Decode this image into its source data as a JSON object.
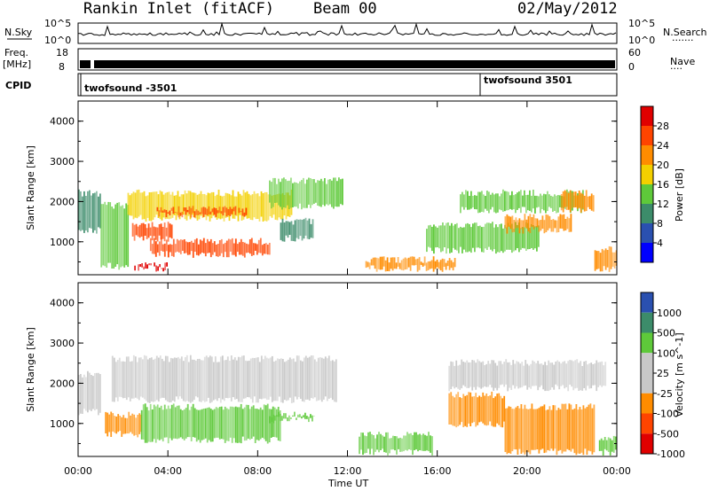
{
  "header": {
    "station": "Rankin Inlet (fitACF)",
    "beam": "Beam 00",
    "date": "02/May/2012"
  },
  "strips": {
    "nsky_label": "N.Sky",
    "nsky_ticks": [
      "10^5",
      "10^0"
    ],
    "nsky_right_ticks": [
      "10^5",
      "10^0"
    ],
    "nsearch_label": "N.Search",
    "freq_label": "Freq.",
    "freq_unit": "[MHz]",
    "freq_ticks": [
      "18",
      "8"
    ],
    "nave_ticks": [
      "60",
      "0"
    ],
    "nave_label": "Nave",
    "cpid_label": "CPID",
    "cpid_entries": [
      "twofsound -3501",
      "twofsound 3501"
    ]
  },
  "colors": {
    "power": [
      "#0000ff",
      "#2a50b0",
      "#3c8c6a",
      "#5ec93a",
      "#f3d000",
      "#ff8c00",
      "#ff4400",
      "#e00000"
    ],
    "velocity": [
      "#2a50b0",
      "#3c8c6a",
      "#5ec93a",
      "#c8c8c8",
      "#c8c8c8",
      "#ff8c00",
      "#ff4400",
      "#e00000"
    ]
  },
  "chart_data": [
    {
      "type": "heatmap",
      "name": "power",
      "ylabel": "Slant Range [km]",
      "xlabel": "",
      "x_ticks": [
        "00:00",
        "04:00",
        "08:00",
        "12:00",
        "16:00",
        "20:00",
        "00:00"
      ],
      "y_ticks": [
        "1000",
        "2000",
        "3000",
        "4000"
      ],
      "ylim": [
        180,
        4500
      ],
      "xlim_hours": [
        0,
        24
      ],
      "colorbar_label": "Power [dB]",
      "colorbar_ticks": [
        "28",
        "24",
        "20",
        "16",
        "12",
        "8",
        "4"
      ],
      "colorbar_range": [
        0,
        32
      ],
      "regions": [
        {
          "t0": 0.0,
          "t1": 1.0,
          "r0": 1200,
          "r1": 2300,
          "v": 10
        },
        {
          "t0": 1.0,
          "t1": 2.2,
          "r0": 300,
          "r1": 2000,
          "v": 14
        },
        {
          "t0": 2.2,
          "t1": 9.5,
          "r0": 1500,
          "r1": 2300,
          "v": 18
        },
        {
          "t0": 2.4,
          "t1": 4.2,
          "r0": 1000,
          "r1": 1500,
          "v": 24
        },
        {
          "t0": 3.2,
          "t1": 8.5,
          "r0": 600,
          "r1": 1100,
          "v": 27
        },
        {
          "t0": 3.5,
          "t1": 7.5,
          "r0": 1600,
          "r1": 1900,
          "v": 25
        },
        {
          "t0": 2.5,
          "t1": 4.0,
          "r0": 250,
          "r1": 500,
          "v": 28
        },
        {
          "t0": 8.5,
          "t1": 11.8,
          "r0": 1800,
          "r1": 2600,
          "v": 12
        },
        {
          "t0": 9.0,
          "t1": 10.5,
          "r0": 1000,
          "r1": 1600,
          "v": 8
        },
        {
          "t0": 12.8,
          "t1": 16.8,
          "r0": 250,
          "r1": 650,
          "v": 22
        },
        {
          "t0": 15.5,
          "t1": 20.5,
          "r0": 700,
          "r1": 1500,
          "v": 12
        },
        {
          "t0": 17.0,
          "t1": 22.5,
          "r0": 1700,
          "r1": 2300,
          "v": 14
        },
        {
          "t0": 19.0,
          "t1": 22.0,
          "r0": 1200,
          "r1": 1700,
          "v": 20
        },
        {
          "t0": 21.5,
          "t1": 23.0,
          "r0": 1700,
          "r1": 2300,
          "v": 23
        },
        {
          "t0": 23.0,
          "t1": 24.0,
          "r0": 250,
          "r1": 900,
          "v": 22
        }
      ]
    },
    {
      "type": "heatmap",
      "name": "velocity",
      "ylabel": "Slant Range [km]",
      "xlabel": "Time UT",
      "x_ticks": [
        "00:00",
        "04:00",
        "08:00",
        "12:00",
        "16:00",
        "20:00",
        "00:00"
      ],
      "y_ticks": [
        "1000",
        "2000",
        "3000",
        "4000"
      ],
      "ylim": [
        180,
        4500
      ],
      "xlim_hours": [
        0,
        24
      ],
      "colorbar_label": "Velocity [m s^-1]",
      "colorbar_ticks": [
        "1000",
        "500",
        "100",
        "25",
        "-25",
        "-100",
        "-500",
        "-1000"
      ],
      "regions": [
        {
          "t0": 0.0,
          "t1": 1.0,
          "r0": 1200,
          "r1": 2300,
          "v": 0
        },
        {
          "t0": 1.2,
          "t1": 2.8,
          "r0": 650,
          "r1": 1300,
          "v": -300
        },
        {
          "t0": 2.8,
          "t1": 9.0,
          "r0": 500,
          "r1": 1500,
          "v": 200
        },
        {
          "t0": 1.5,
          "t1": 11.5,
          "r0": 1500,
          "r1": 2700,
          "v": 0
        },
        {
          "t0": 8.5,
          "t1": 10.5,
          "r0": 1000,
          "r1": 1300,
          "v": 50
        },
        {
          "t0": 12.5,
          "t1": 15.8,
          "r0": 200,
          "r1": 800,
          "v": 60
        },
        {
          "t0": 16.5,
          "t1": 19.0,
          "r0": 900,
          "r1": 1800,
          "v": -150
        },
        {
          "t0": 19.0,
          "t1": 23.0,
          "r0": 200,
          "r1": 1500,
          "v": -300
        },
        {
          "t0": 16.5,
          "t1": 23.5,
          "r0": 1800,
          "r1": 2600,
          "v": 0
        },
        {
          "t0": 23.2,
          "t1": 24.0,
          "r0": 200,
          "r1": 700,
          "v": 60
        }
      ]
    }
  ]
}
